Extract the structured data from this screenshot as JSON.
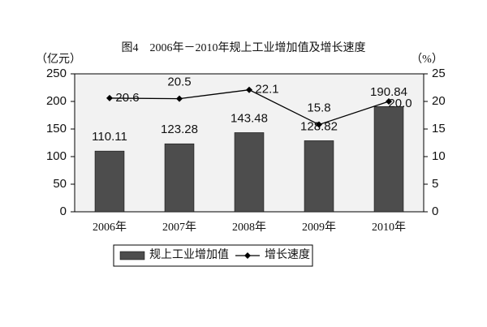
{
  "chart_data": {
    "type": "bar",
    "title": "图4　2006年－2010年规上工业增加值及增长速度",
    "y_label": "（亿元）",
    "y2_label": "（%）",
    "categories": [
      "2006年",
      "2007年",
      "2008年",
      "2009年",
      "2010年"
    ],
    "series": [
      {
        "name": "规上工业增加值",
        "type": "bar",
        "color": "#4d4d4d",
        "values": [
          110.11,
          123.28,
          143.48,
          128.82,
          190.84
        ]
      },
      {
        "name": "增长速度",
        "type": "line",
        "axis": "y2",
        "color": "#000000",
        "values": [
          20.6,
          20.5,
          22.1,
          15.8,
          20.0
        ],
        "value_labels": [
          "20.6",
          "20.5",
          "22.1",
          "15.8",
          "20.0"
        ]
      }
    ],
    "ylim": [
      0,
      250
    ],
    "yticks": [
      0,
      50,
      100,
      150,
      200,
      250
    ],
    "y2lim": [
      0,
      25
    ],
    "y2ticks": [
      0,
      5,
      10,
      15,
      20,
      25
    ],
    "grid": false,
    "legend": "bottom"
  }
}
